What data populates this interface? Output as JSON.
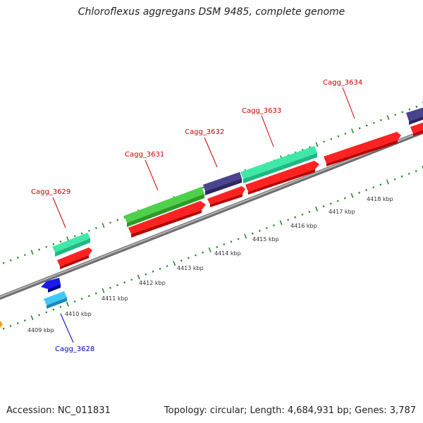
{
  "title": "Chloroflexus aggregans DSM 9485, complete genome",
  "footer": {
    "accession": "Accession: NC_011831",
    "summary": "Topology: circular; Length: 4,684,931 bp; Genes: 3,787"
  },
  "colors": {
    "backbone": "#8c8c8c",
    "tick": "#2a8a2a",
    "label_forward": "#cc0000",
    "label_reverse": "#0000cc",
    "axis_label": "#333333"
  },
  "axis": {
    "labels": [
      "4409 kbp",
      "4410 kbp",
      "4411 kbp",
      "4412 kbp",
      "4413 kbp",
      "4414 kbp",
      "4415 kbp",
      "4416 kbp",
      "4417 kbp",
      "4418 kbp"
    ]
  },
  "gene_labels": [
    {
      "id": "cagg3629",
      "text": "Cagg_3629",
      "strand": "forward"
    },
    {
      "id": "cagg3631",
      "text": "Cagg_3631",
      "strand": "forward"
    },
    {
      "id": "cagg3632",
      "text": "Cagg_3632",
      "strand": "forward"
    },
    {
      "id": "cagg3633",
      "text": "Cagg_3633",
      "strand": "forward"
    },
    {
      "id": "cagg3634",
      "text": "Cagg_3634",
      "strand": "forward"
    },
    {
      "id": "cagg3628",
      "text": "Cagg_3628",
      "strand": "reverse"
    }
  ]
}
